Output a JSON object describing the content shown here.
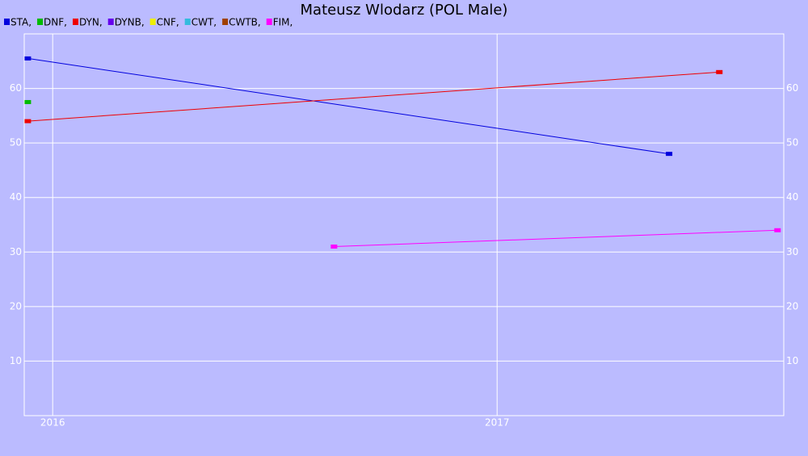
{
  "chart_data": {
    "type": "line",
    "title": "Mateusz Wlodarz (POL Male)",
    "xlim": [
      2015.936,
      2017.645
    ],
    "xticks": [
      2016,
      2017
    ],
    "ylim": [
      0,
      70
    ],
    "yticks": [
      10,
      20,
      30,
      40,
      50,
      60
    ],
    "grid": true,
    "series": [
      {
        "name": "STA,",
        "color": "#0000dd",
        "x": [
          2015.944,
          2017.387
        ],
        "values": [
          65.5,
          48
        ]
      },
      {
        "name": "DNF,",
        "color": "#00bb00",
        "x": [
          2015.944
        ],
        "values": [
          57.5
        ]
      },
      {
        "name": "DYN,",
        "color": "#ee0000",
        "x": [
          2015.944,
          2017.5
        ],
        "values": [
          54,
          63
        ]
      },
      {
        "name": "DYNB,",
        "color": "#6600ee",
        "x": [],
        "values": []
      },
      {
        "name": "CNF,",
        "color": "#eeee00",
        "x": [],
        "values": []
      },
      {
        "name": "CWT,",
        "color": "#33bbdd",
        "x": [],
        "values": []
      },
      {
        "name": "CWTB,",
        "color": "#a04000",
        "x": [],
        "values": []
      },
      {
        "name": "FIM,",
        "color": "#ff00ff",
        "x": [
          2016.633,
          2017.631
        ],
        "values": [
          31,
          34
        ]
      }
    ]
  }
}
